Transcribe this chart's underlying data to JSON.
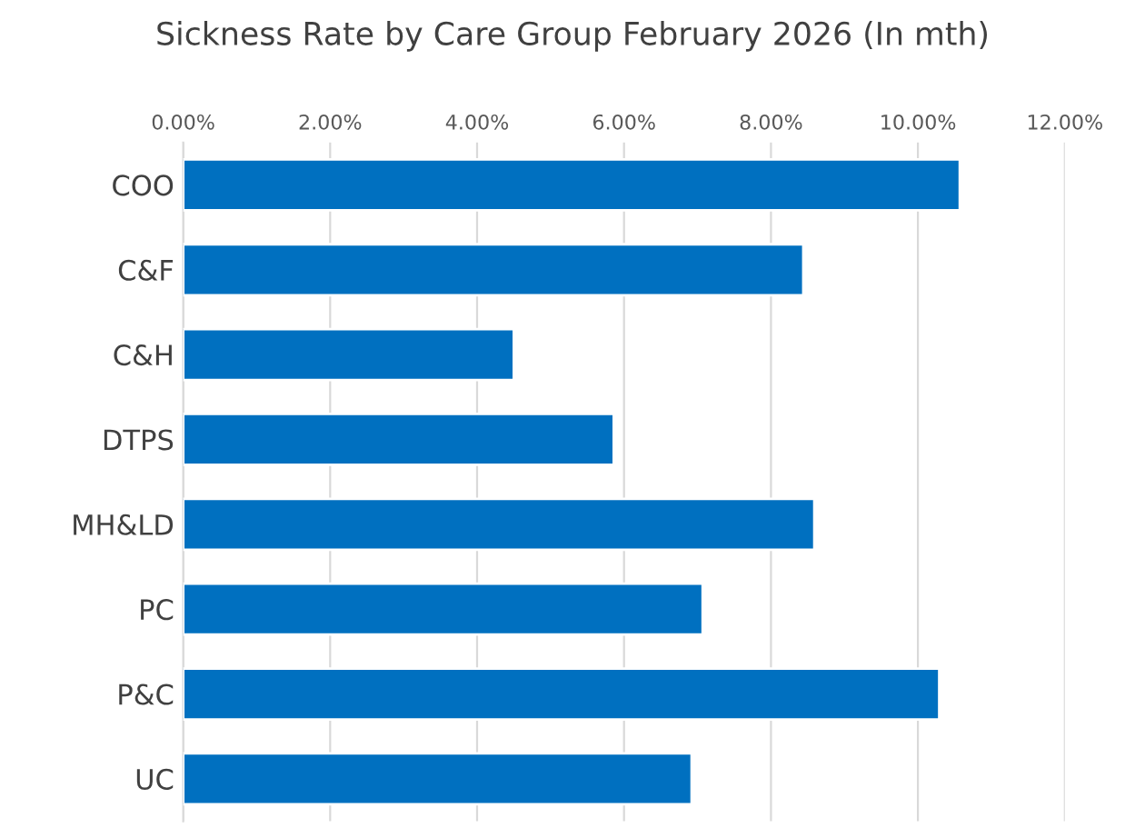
{
  "chart_data": {
    "type": "bar",
    "orientation": "horizontal",
    "title": "Sickness Rate by Care Group February 2026 (In mth)",
    "categories": [
      "COO",
      "C&F",
      "C&H",
      "DTPS",
      "MH&LD",
      "PC",
      "P&C",
      "UC"
    ],
    "values": [
      10.57,
      8.44,
      4.5,
      5.86,
      8.59,
      7.07,
      10.29,
      6.92
    ],
    "color": "#0070c0",
    "xlim": [
      0,
      12
    ],
    "xticks": [
      {
        "value": 0,
        "label": "0.00%"
      },
      {
        "value": 2,
        "label": "2.00%"
      },
      {
        "value": 4,
        "label": "4.00%"
      },
      {
        "value": 6,
        "label": "6.00%"
      },
      {
        "value": 8,
        "label": "8.00%"
      },
      {
        "value": 10,
        "label": "10.00%"
      },
      {
        "value": 12,
        "label": "12.00%"
      }
    ],
    "grid": "x",
    "legend": false
  }
}
